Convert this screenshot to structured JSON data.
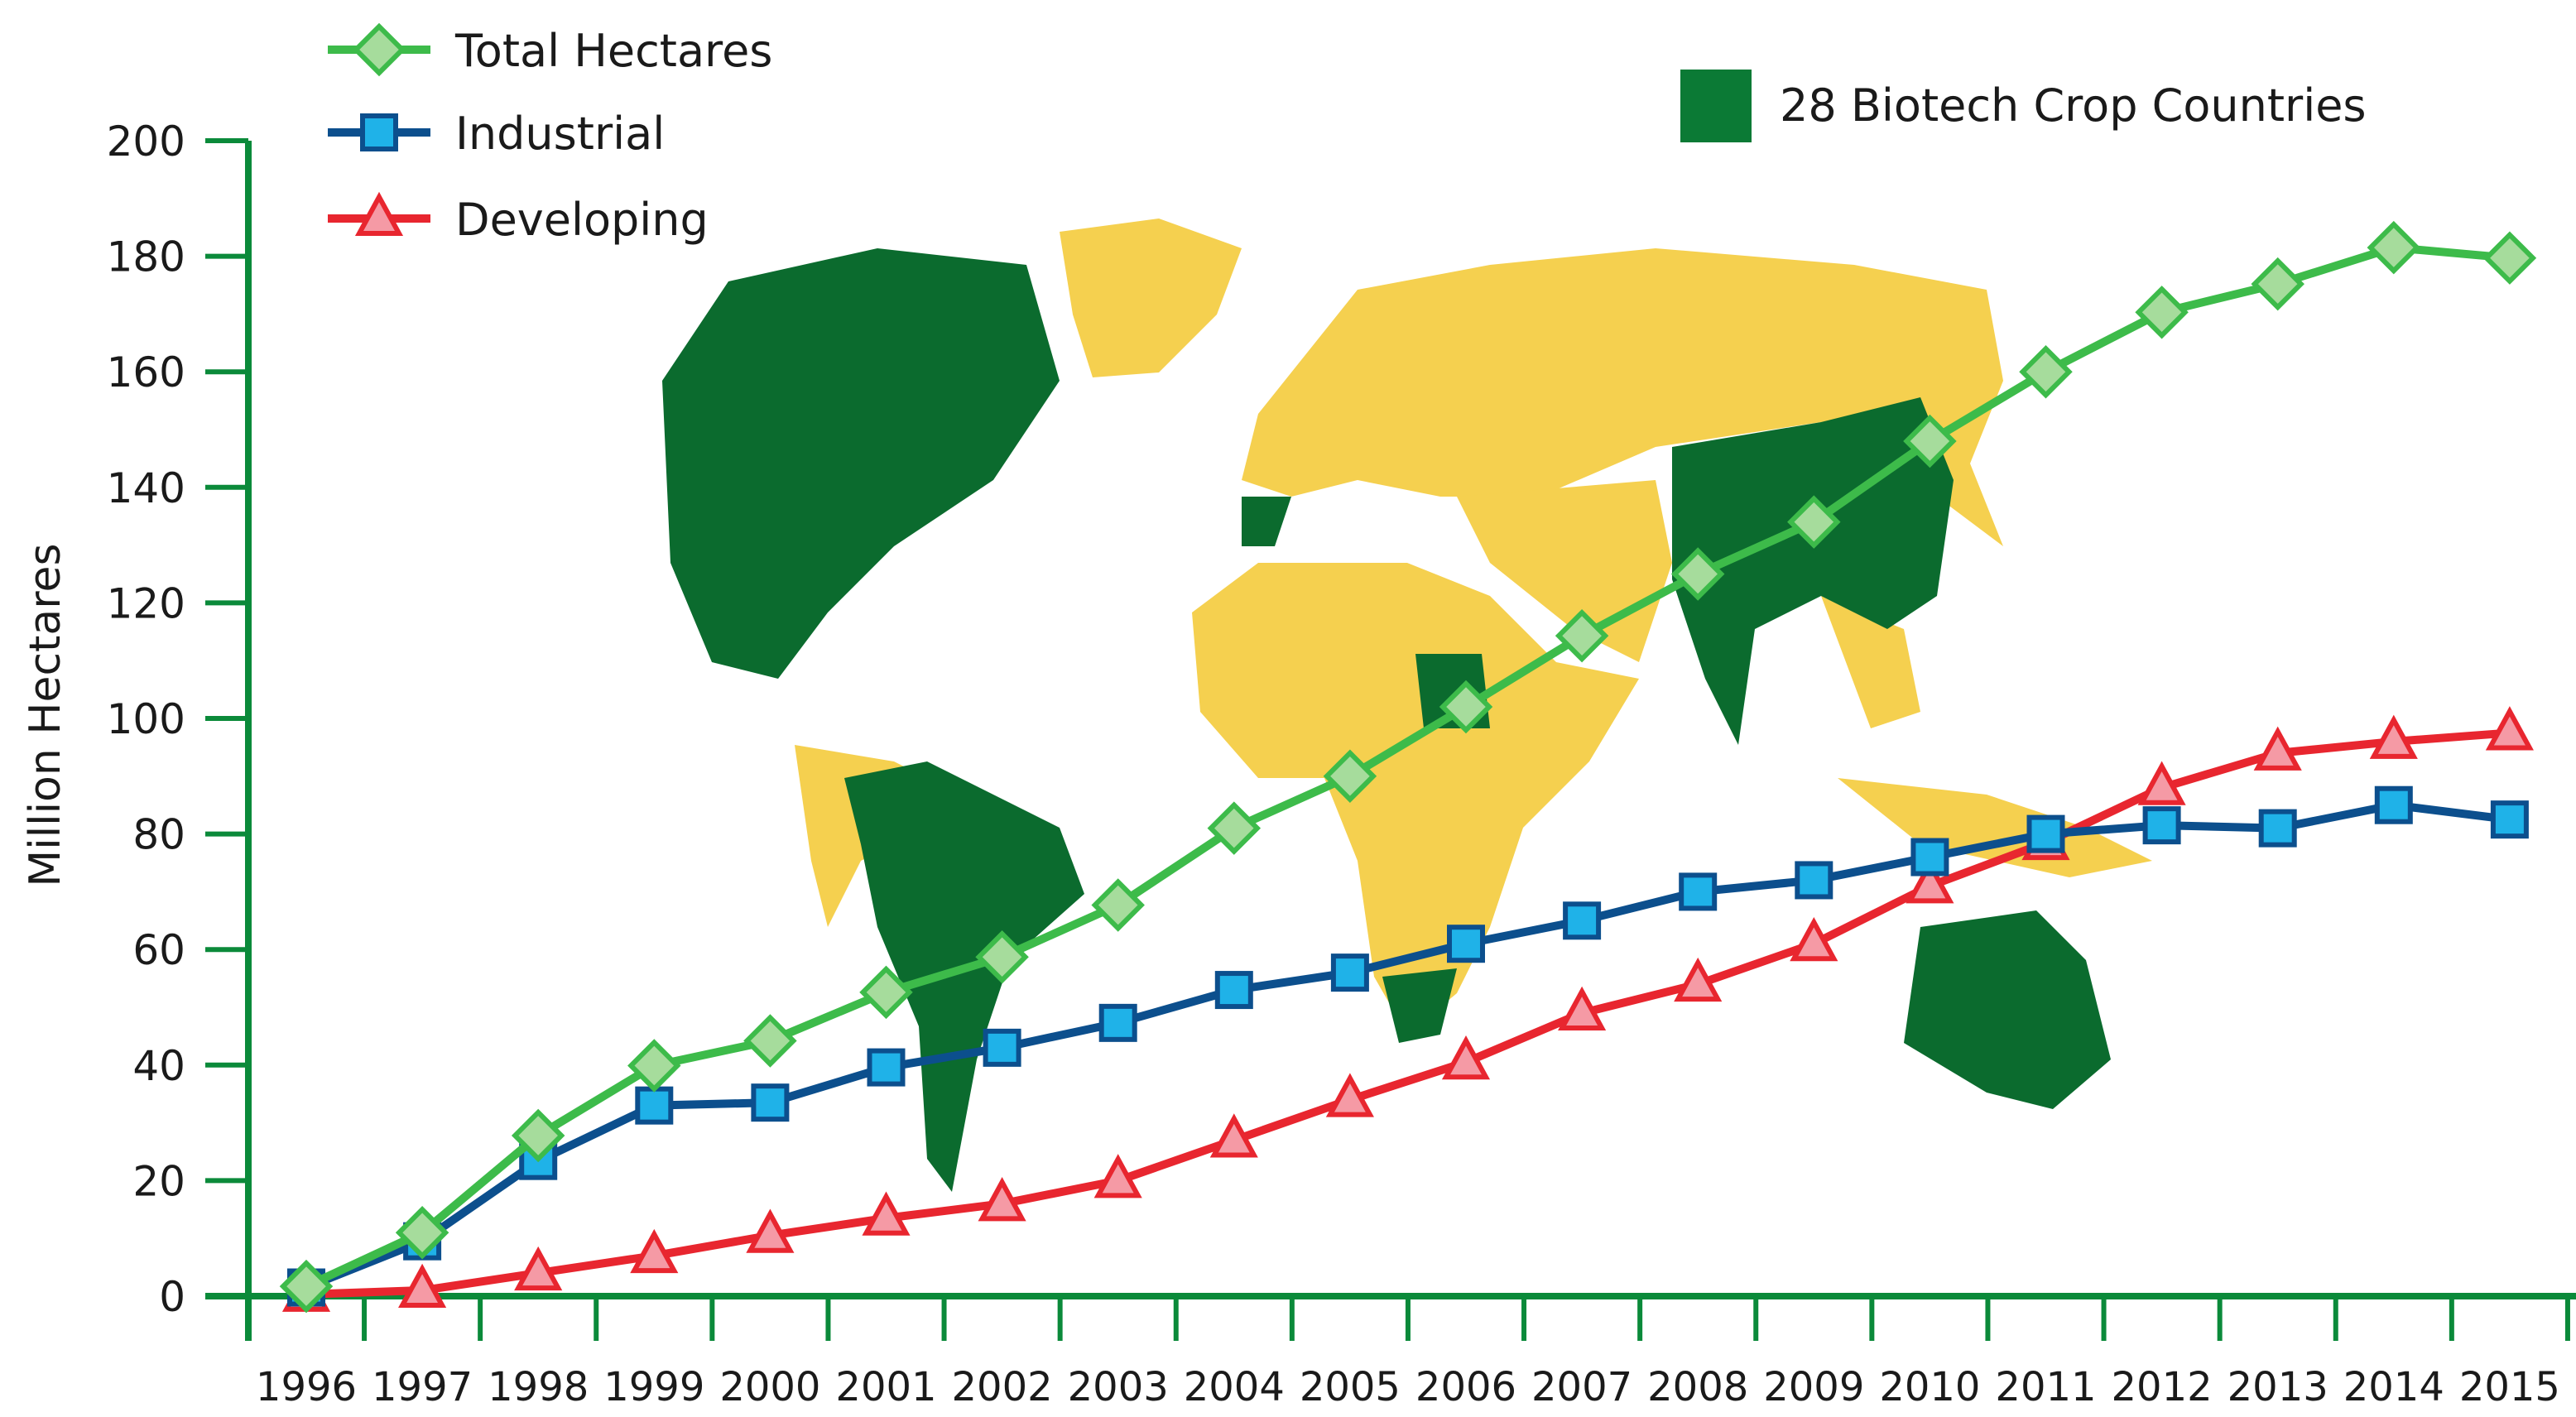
{
  "chart_data": {
    "type": "line",
    "title": "",
    "xlabel": "",
    "ylabel": "Million Hectares",
    "ylim": [
      0,
      200
    ],
    "yticks": [
      0,
      20,
      40,
      60,
      80,
      100,
      120,
      140,
      160,
      180,
      200
    ],
    "categories": [
      "1996",
      "1997",
      "1998",
      "1999",
      "2000",
      "2001",
      "2002",
      "2003",
      "2004",
      "2005",
      "2006",
      "2007",
      "2008",
      "2009",
      "2010",
      "2011",
      "2012",
      "2013",
      "2014",
      "2015"
    ],
    "legend_placement": "top-left",
    "series": [
      {
        "name": "Total Hectares",
        "marker": "diamond",
        "color": "#3dbb4a",
        "marker_fill": "#a6dc9c",
        "values": [
          1.7,
          11,
          27.8,
          39.9,
          44.2,
          52.6,
          58.7,
          67.7,
          81.0,
          90.0,
          102.0,
          114.3,
          125.0,
          134.0,
          148.0,
          160.0,
          170.3,
          175.2,
          181.5,
          179.7
        ]
      },
      {
        "name": "Industrial",
        "marker": "square",
        "color": "#0c4f8d",
        "marker_fill": "#1fb2e8",
        "values": [
          1.5,
          9.5,
          23.4,
          33.0,
          33.5,
          39.6,
          43.0,
          47.3,
          53.0,
          56.0,
          61.0,
          65.0,
          70.0,
          72.0,
          76.0,
          80.0,
          81.5,
          81.0,
          85.0,
          82.5
        ]
      },
      {
        "name": "Developing",
        "marker": "triangle",
        "color": "#e8262f",
        "marker_fill": "#f59aa5",
        "values": [
          0.3,
          1.0,
          4.0,
          7.0,
          10.5,
          13.5,
          16.0,
          20.0,
          27.0,
          34.0,
          40.5,
          49.0,
          54.0,
          61.0,
          71.0,
          78.5,
          88.0,
          94.0,
          96.0,
          97.5
        ]
      }
    ],
    "annotation": {
      "label": "28 Biotech Crop Countries",
      "color": "#0b7a35"
    },
    "map_colors": {
      "biotech": "#0b6b2e",
      "other": "#f5d04f"
    }
  }
}
